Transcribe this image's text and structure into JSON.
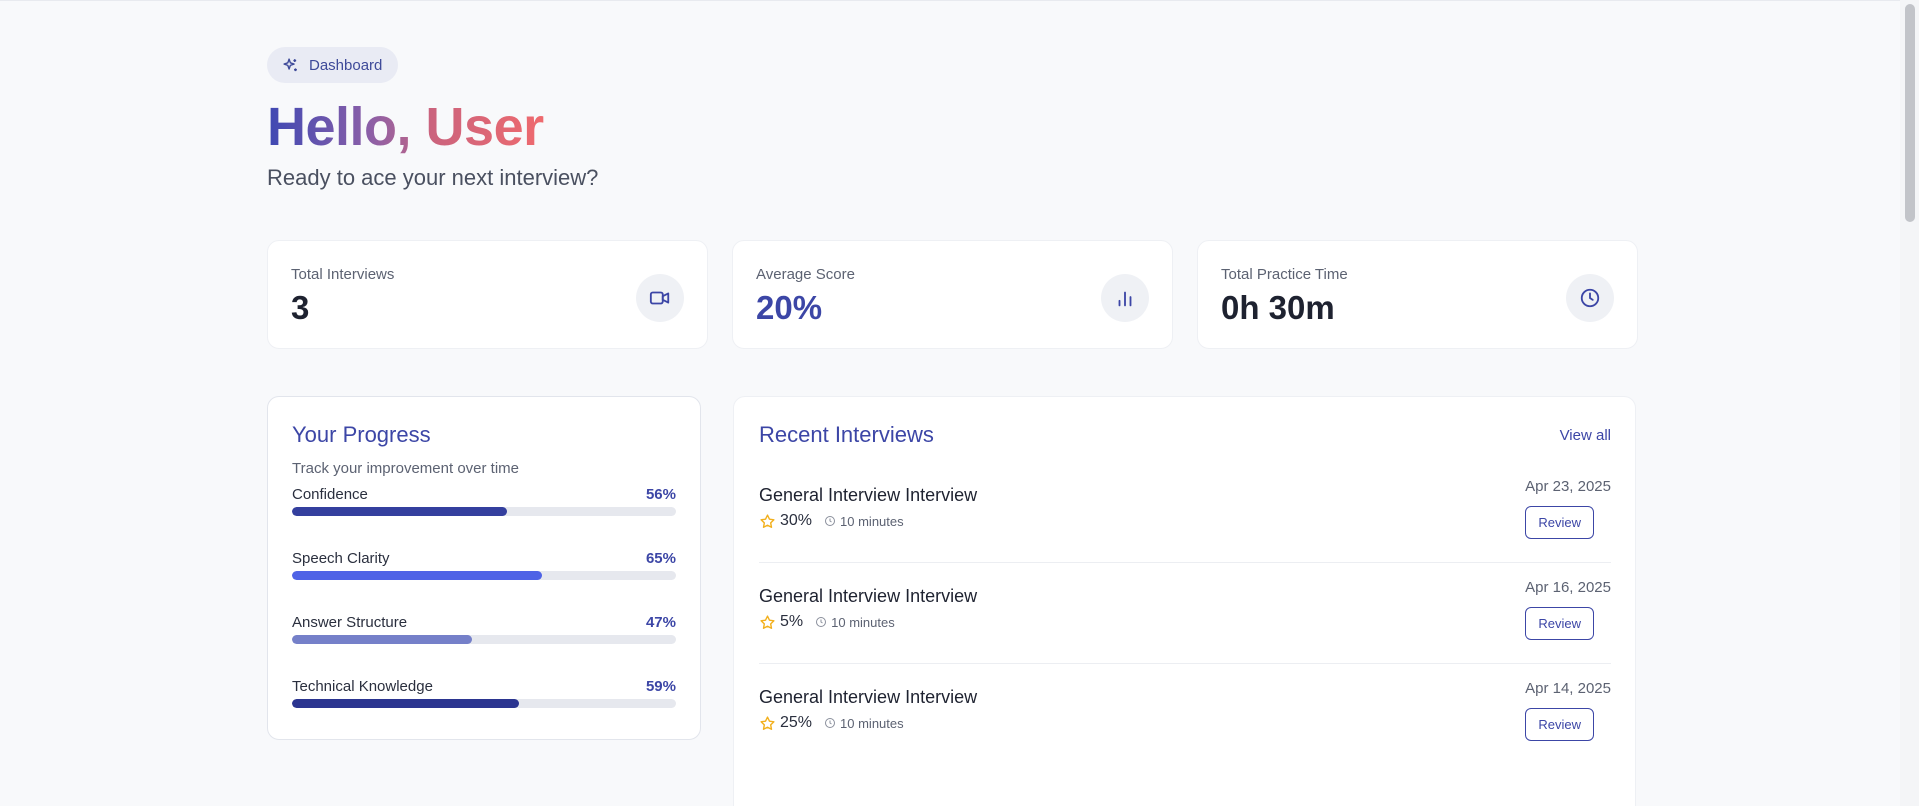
{
  "badge": {
    "label": "Dashboard",
    "icon": "sparkle-icon"
  },
  "greeting": {
    "hello": "Hello,",
    "name": "User"
  },
  "subtitle": "Ready to ace your next interview?",
  "stats": [
    {
      "label": "Total Interviews",
      "value": "3",
      "icon": "video-icon"
    },
    {
      "label": "Average Score",
      "value": "20%",
      "icon": "bar-chart-icon"
    },
    {
      "label": "Total Practice Time",
      "value": "0h 30m",
      "icon": "clock-icon"
    }
  ],
  "progress": {
    "title": "Your Progress",
    "subtitle": "Track your improvement over time",
    "metrics": [
      {
        "name": "Confidence",
        "pct": "56%",
        "value": 56,
        "color": "#343f9e"
      },
      {
        "name": "Speech Clarity",
        "pct": "65%",
        "value": 65,
        "color": "#4f63e6"
      },
      {
        "name": "Answer Structure",
        "pct": "47%",
        "value": 47,
        "color": "#7580c9"
      },
      {
        "name": "Technical Knowledge",
        "pct": "59%",
        "value": 59,
        "color": "#2b3590"
      }
    ]
  },
  "recent": {
    "title": "Recent Interviews",
    "view_all": "View all",
    "items": [
      {
        "title": "General Interview Interview",
        "score": "30%",
        "duration": "10 minutes",
        "date": "Apr 23, 2025",
        "action": "Review"
      },
      {
        "title": "General Interview Interview",
        "score": "5%",
        "duration": "10 minutes",
        "date": "Apr 16, 2025",
        "action": "Review"
      },
      {
        "title": "General Interview Interview",
        "score": "25%",
        "duration": "10 minutes",
        "date": "Apr 14, 2025",
        "action": "Review"
      }
    ]
  },
  "colors": {
    "accent": "#3c46a6",
    "star": "#f2b01e"
  }
}
